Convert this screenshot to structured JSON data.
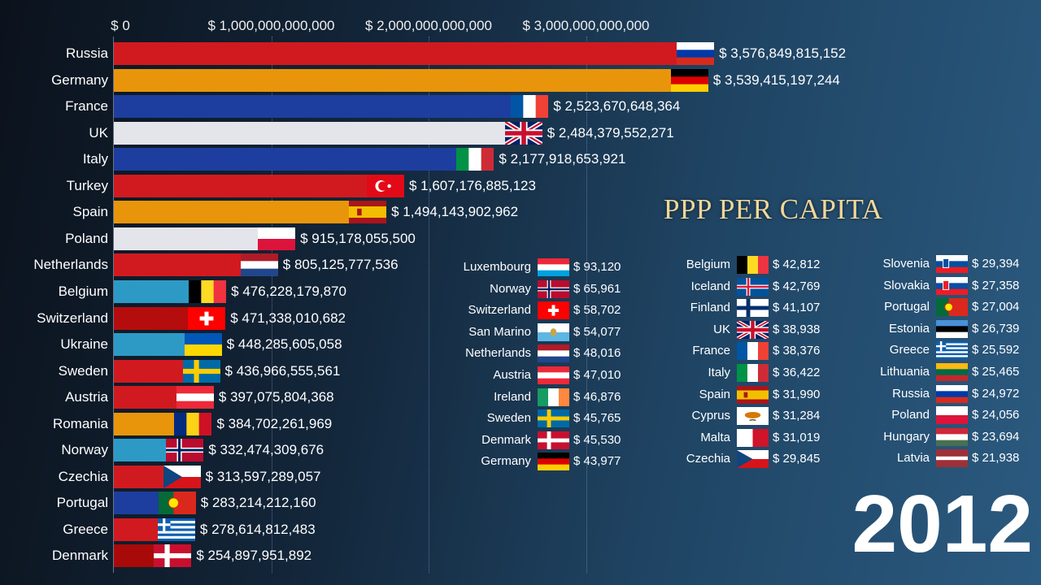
{
  "chart_data": [
    {
      "type": "bar",
      "orientation": "horizontal",
      "title": "",
      "xlabel": "",
      "ylabel": "",
      "xlim": [
        0,
        3700000000000
      ],
      "ticks": [
        0,
        1000000000000,
        2000000000000,
        3000000000000
      ],
      "tick_labels": [
        "$ 0",
        "$ 1,000,000,000,000",
        "$ 2,000,000,000,000",
        "$ 3,000,000,000,000"
      ],
      "grid": true,
      "categories": [
        "Russia",
        "Germany",
        "France",
        "UK",
        "Italy",
        "Turkey",
        "Spain",
        "Poland",
        "Netherlands",
        "Belgium",
        "Switzerland",
        "Ukraine",
        "Sweden",
        "Austria",
        "Romania",
        "Norway",
        "Czechia",
        "Portugal",
        "Greece",
        "Denmark"
      ],
      "values": [
        3576849815152,
        3539415197244,
        2523670648364,
        2484379552271,
        2177918653921,
        1607176885123,
        1494143902962,
        915178055500,
        805125777536,
        476228179870,
        471338010682,
        448285605058,
        436966555561,
        397075804368,
        384702261969,
        332474309676,
        313597289057,
        283214212160,
        278614812483,
        254897951892
      ],
      "value_labels": [
        "$ 3,576,849,815,152",
        "$ 3,539,415,197,244",
        "$ 2,523,670,648,364",
        "$ 2,484,379,552,271",
        "$ 2,177,918,653,921",
        "$ 1,607,176,885,123",
        "$ 1,494,143,902,962",
        "$ 915,178,055,500",
        "$ 805,125,777,536",
        "$ 476,228,179,870",
        "$ 471,338,010,682",
        "$ 448,285,605,058",
        "$ 436,966,555,561",
        "$ 397,075,804,368",
        "$ 384,702,261,969",
        "$ 332,474,309,676",
        "$ 313,597,289,057",
        "$ 283,214,212,160",
        "$ 278,614,812,483",
        "$ 254,897,951,892"
      ],
      "bar_colors": [
        "#d11a1f",
        "#e8950c",
        "#1d3e9e",
        "#e4e5ea",
        "#1d3e9e",
        "#d11a1f",
        "#e8950c",
        "#e4e5ea",
        "#d11a1f",
        "#2d9ac6",
        "#b50d0d",
        "#2d9ac6",
        "#d11a1f",
        "#d11a1f",
        "#e8950c",
        "#2d9ac6",
        "#d11a1f",
        "#1d3e9e",
        "#d11a1f",
        "#a80a0a"
      ],
      "flags": [
        "russia",
        "germany",
        "france",
        "uk",
        "italy",
        "turkey",
        "spain",
        "poland",
        "netherlands",
        "belgium",
        "switzerland",
        "ukraine",
        "sweden",
        "austria",
        "romania",
        "norway",
        "czechia",
        "portugal",
        "greece",
        "denmark"
      ]
    },
    {
      "type": "table",
      "title": "PPP PER CAPITA",
      "columns": [
        [
          {
            "country": "Luxembourg",
            "value": "$ 93,120",
            "flag": "luxembourg"
          },
          {
            "country": "Norway",
            "value": "$ 65,961",
            "flag": "norway"
          },
          {
            "country": "Switzerland",
            "value": "$ 58,702",
            "flag": "switzerland"
          },
          {
            "country": "San Marino",
            "value": "$ 54,077",
            "flag": "sanmarino"
          },
          {
            "country": "Netherlands",
            "value": "$ 48,016",
            "flag": "netherlands"
          },
          {
            "country": "Austria",
            "value": "$ 47,010",
            "flag": "austria"
          },
          {
            "country": "Ireland",
            "value": "$ 46,876",
            "flag": "ireland"
          },
          {
            "country": "Sweden",
            "value": "$ 45,765",
            "flag": "sweden"
          },
          {
            "country": "Denmark",
            "value": "$ 45,530",
            "flag": "denmark"
          },
          {
            "country": "Germany",
            "value": "$ 43,977",
            "flag": "germany"
          }
        ],
        [
          {
            "country": "Belgium",
            "value": "$ 42,812",
            "flag": "belgium"
          },
          {
            "country": "Iceland",
            "value": "$ 42,769",
            "flag": "iceland"
          },
          {
            "country": "Finland",
            "value": "$ 41,107",
            "flag": "finland"
          },
          {
            "country": "UK",
            "value": "$ 38,938",
            "flag": "uk"
          },
          {
            "country": "France",
            "value": "$ 38,376",
            "flag": "france"
          },
          {
            "country": "Italy",
            "value": "$ 36,422",
            "flag": "italy"
          },
          {
            "country": "Spain",
            "value": "$ 31,990",
            "flag": "spain"
          },
          {
            "country": "Cyprus",
            "value": "$ 31,284",
            "flag": "cyprus"
          },
          {
            "country": "Malta",
            "value": "$ 31,019",
            "flag": "malta"
          },
          {
            "country": "Czechia",
            "value": "$ 29,845",
            "flag": "czechia"
          }
        ],
        [
          {
            "country": "Slovenia",
            "value": "$ 29,394",
            "flag": "slovenia"
          },
          {
            "country": "Slovakia",
            "value": "$ 27,358",
            "flag": "slovakia"
          },
          {
            "country": "Portugal",
            "value": "$ 27,004",
            "flag": "portugal"
          },
          {
            "country": "Estonia",
            "value": "$ 26,739",
            "flag": "estonia"
          },
          {
            "country": "Greece",
            "value": "$ 25,592",
            "flag": "greece"
          },
          {
            "country": "Lithuania",
            "value": "$ 25,465",
            "flag": "lithuania"
          },
          {
            "country": "Russia",
            "value": "$ 24,972",
            "flag": "russia"
          },
          {
            "country": "Poland",
            "value": "$ 24,056",
            "flag": "poland"
          },
          {
            "country": "Hungary",
            "value": "$ 23,694",
            "flag": "hungary"
          },
          {
            "country": "Latvia",
            "value": "$ 21,938",
            "flag": "latvia"
          }
        ]
      ]
    }
  ],
  "year": "2012"
}
